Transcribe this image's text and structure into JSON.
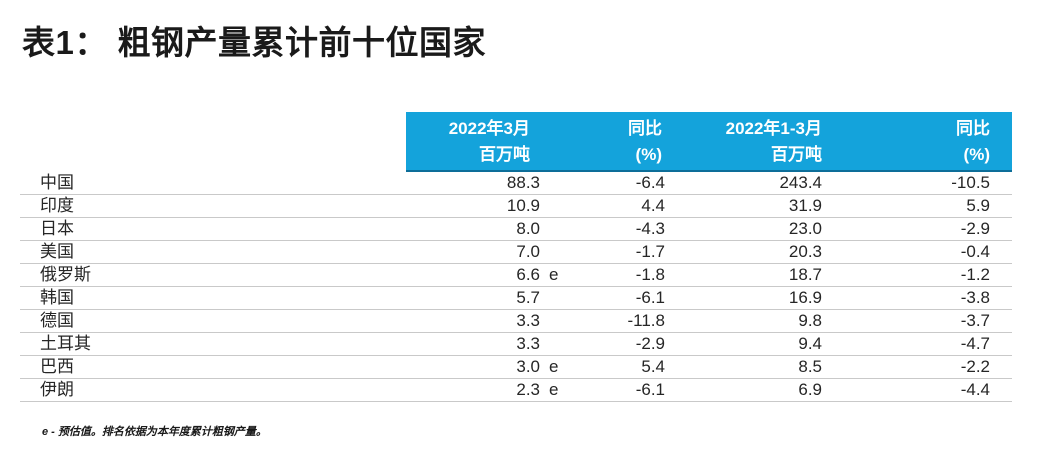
{
  "title": "表1： 粗钢产量累计前十位国家",
  "table": {
    "header": {
      "col1_line1": "2022年3月",
      "col1_line2": "百万吨",
      "col2_line1": "同比",
      "col2_line2": "(%)",
      "col3_line1": "2022年1-3月",
      "col3_line2": "百万吨",
      "col4_line1": "同比",
      "col4_line2": "(%)"
    },
    "rows": [
      {
        "country": "中国",
        "mar_mt": "88.3",
        "mar_flag": "",
        "mar_yoy": "-6.4",
        "q1_mt": "243.4",
        "q1_yoy": "-10.5"
      },
      {
        "country": "印度",
        "mar_mt": "10.9",
        "mar_flag": "",
        "mar_yoy": "4.4",
        "q1_mt": "31.9",
        "q1_yoy": "5.9"
      },
      {
        "country": "日本",
        "mar_mt": "8.0",
        "mar_flag": "",
        "mar_yoy": "-4.3",
        "q1_mt": "23.0",
        "q1_yoy": "-2.9"
      },
      {
        "country": "美国",
        "mar_mt": "7.0",
        "mar_flag": "",
        "mar_yoy": "-1.7",
        "q1_mt": "20.3",
        "q1_yoy": "-0.4"
      },
      {
        "country": "俄罗斯",
        "mar_mt": "6.6",
        "mar_flag": "e",
        "mar_yoy": "-1.8",
        "q1_mt": "18.7",
        "q1_yoy": "-1.2"
      },
      {
        "country": "韩国",
        "mar_mt": "5.7",
        "mar_flag": "",
        "mar_yoy": "-6.1",
        "q1_mt": "16.9",
        "q1_yoy": "-3.8"
      },
      {
        "country": "德国",
        "mar_mt": "3.3",
        "mar_flag": "",
        "mar_yoy": "-11.8",
        "q1_mt": "9.8",
        "q1_yoy": "-3.7"
      },
      {
        "country": "土耳其",
        "mar_mt": "3.3",
        "mar_flag": "",
        "mar_yoy": "-2.9",
        "q1_mt": "9.4",
        "q1_yoy": "-4.7"
      },
      {
        "country": "巴西",
        "mar_mt": "3.0",
        "mar_flag": "e",
        "mar_yoy": "5.4",
        "q1_mt": "8.5",
        "q1_yoy": "-2.2"
      },
      {
        "country": "伊朗",
        "mar_mt": "2.3",
        "mar_flag": "e",
        "mar_yoy": "-6.1",
        "q1_mt": "6.9",
        "q1_yoy": "-4.4"
      }
    ]
  },
  "footnote": "e - 预估值。排名依据为本年度累计粗钢产量。",
  "colors": {
    "header_bg": "#14a3db",
    "header_border": "#0d6e99",
    "header_text": "#ffffff",
    "row_divider": "#c9c9c9",
    "text": "#262626"
  }
}
